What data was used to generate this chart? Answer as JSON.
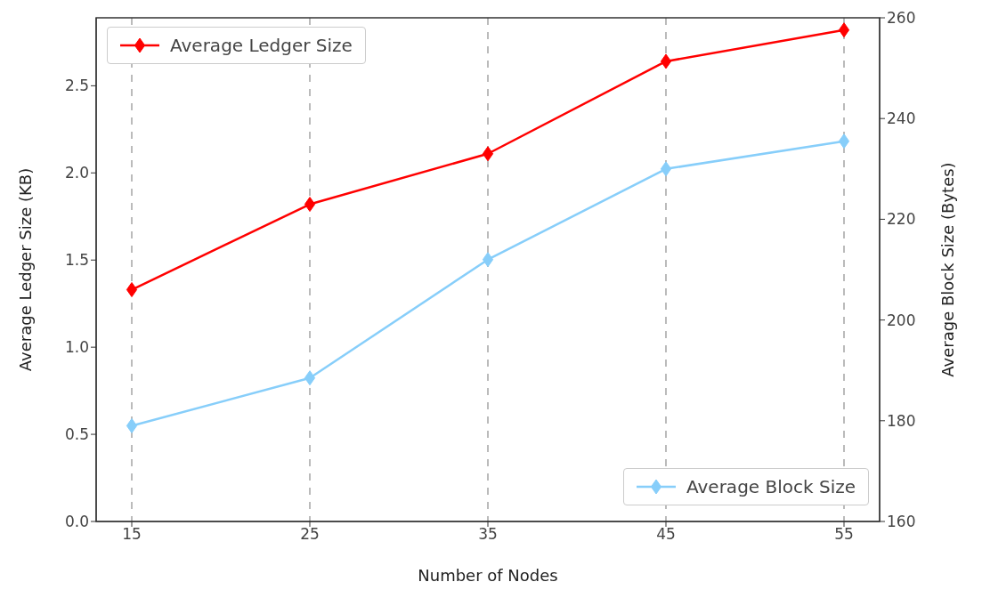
{
  "chart_data": {
    "type": "line",
    "xlabel": "Number of Nodes",
    "ylabel": "Average Ledger Size (KB)",
    "y2label": "Average Block Size (Bytes)",
    "x": [
      15,
      25,
      35,
      45,
      55
    ],
    "series": [
      {
        "name": "Average Ledger Size",
        "color": "#ff0000",
        "values": [
          1.33,
          1.82,
          2.11,
          2.64,
          2.82
        ]
      },
      {
        "name": "Average Block Size",
        "color": "#87cefa",
        "values": [
          179,
          188.5,
          212,
          230,
          235.5
        ],
        "axis": "y2"
      }
    ],
    "xlim": [
      13,
      57
    ],
    "xticks": [
      15,
      25,
      35,
      45,
      55
    ],
    "ylim": [
      0,
      2.89
    ],
    "yticks": [
      {
        "value": 0,
        "label": "0.0"
      },
      {
        "value": 0.5,
        "label": "0.5"
      },
      {
        "value": 1,
        "label": "1.0"
      },
      {
        "value": 1.5,
        "label": "1.5"
      },
      {
        "value": 2,
        "label": "2.0"
      },
      {
        "value": 2.5,
        "label": "2.5"
      }
    ],
    "y2lim": [
      160,
      260
    ],
    "y2ticks": [
      160,
      180,
      200,
      220,
      240,
      260
    ],
    "grid": "x",
    "marker": "diamond",
    "line_style": "solid",
    "legend": "top left"
  }
}
